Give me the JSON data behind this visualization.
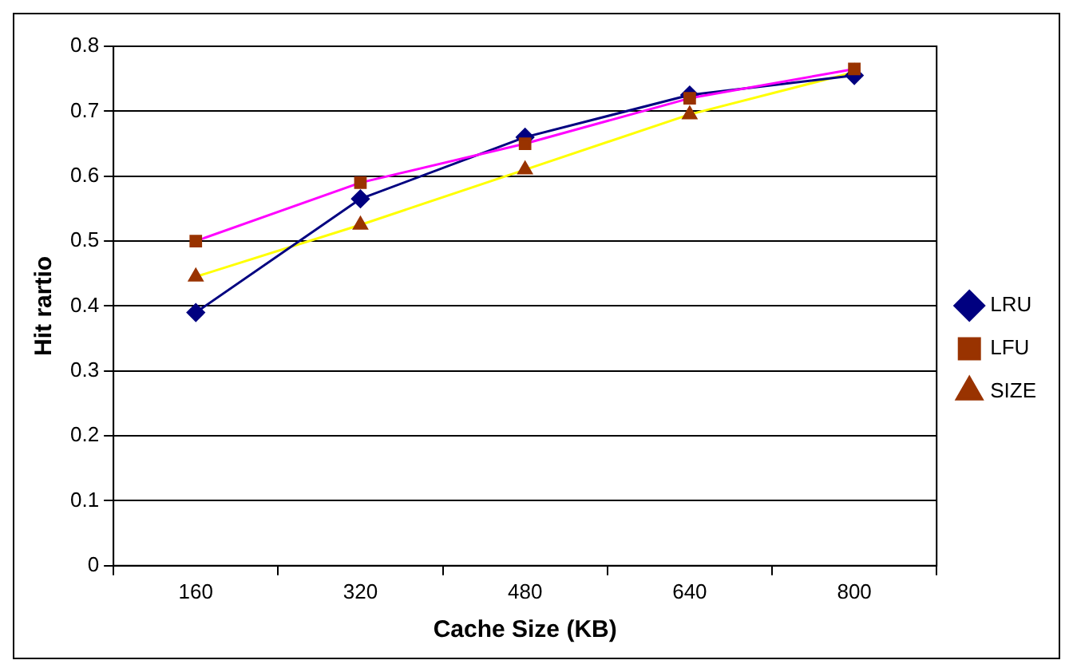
{
  "chart_data": {
    "type": "line",
    "xlabel": "Cache Size (KB)",
    "ylabel": "Hit rartio",
    "categories": [
      "160",
      "320",
      "480",
      "640",
      "800"
    ],
    "series": [
      {
        "name": "LRU",
        "color": "#000080",
        "marker": "diamond",
        "values": [
          0.39,
          0.565,
          0.66,
          0.725,
          0.755
        ]
      },
      {
        "name": "LFU",
        "color": "#ff00ff",
        "marker": "square",
        "values": [
          0.5,
          0.59,
          0.65,
          0.72,
          0.765
        ]
      },
      {
        "name": "SIZE",
        "color": "#ffff00",
        "marker": "triangle",
        "values": [
          0.445,
          0.525,
          0.61,
          0.695,
          0.76
        ]
      }
    ],
    "ylim": [
      0,
      0.8
    ],
    "yticks": [
      0,
      0.1,
      0.2,
      0.3,
      0.4,
      0.5,
      0.6,
      0.7,
      0.8
    ],
    "grid": "y",
    "legend": "right"
  }
}
